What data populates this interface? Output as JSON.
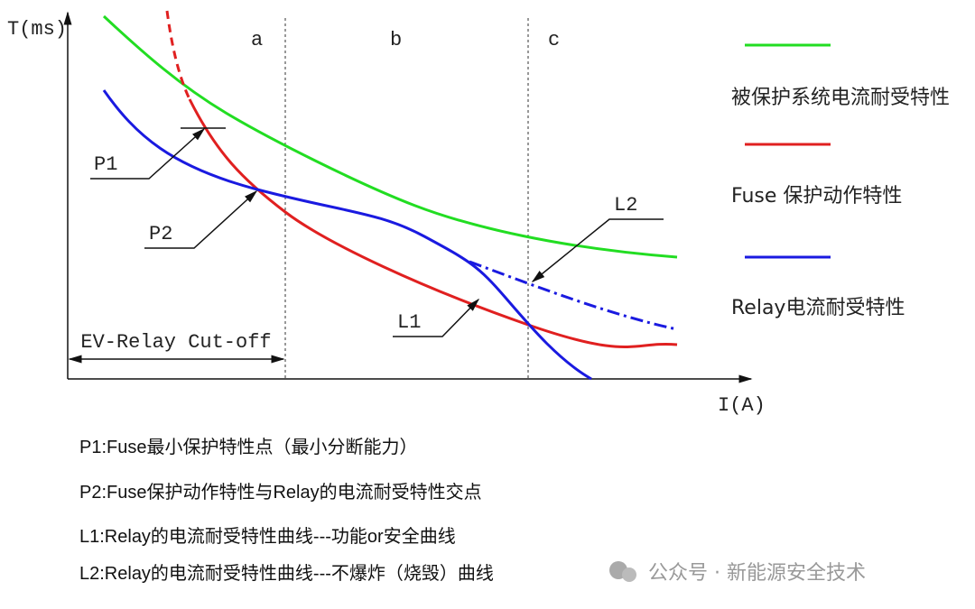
{
  "diagram": {
    "y_axis_label": "T(ms)",
    "x_axis_label": "I(A)",
    "regions": [
      "a",
      "b",
      "c"
    ],
    "callouts": [
      "P1",
      "P2",
      "L1",
      "L2"
    ],
    "cutoff_label": "EV-Relay Cut-off",
    "legend": [
      "被保护系统电流耐受特性",
      "Fuse 保护动作特性",
      "Relay电流耐受特性"
    ]
  },
  "notes": [
    "P1:Fuse最小保护特性点（最小分断能力）",
    "P2:Fuse保护动作特性与Relay的电流耐受特性交点",
    "L1:Relay的电流耐受特性曲线---功能or安全曲线",
    "L2:Relay的电流耐受特性曲线---不爆炸（烧毁）曲线"
  ],
  "watermark": "公众号 · 新能源安全技术"
}
